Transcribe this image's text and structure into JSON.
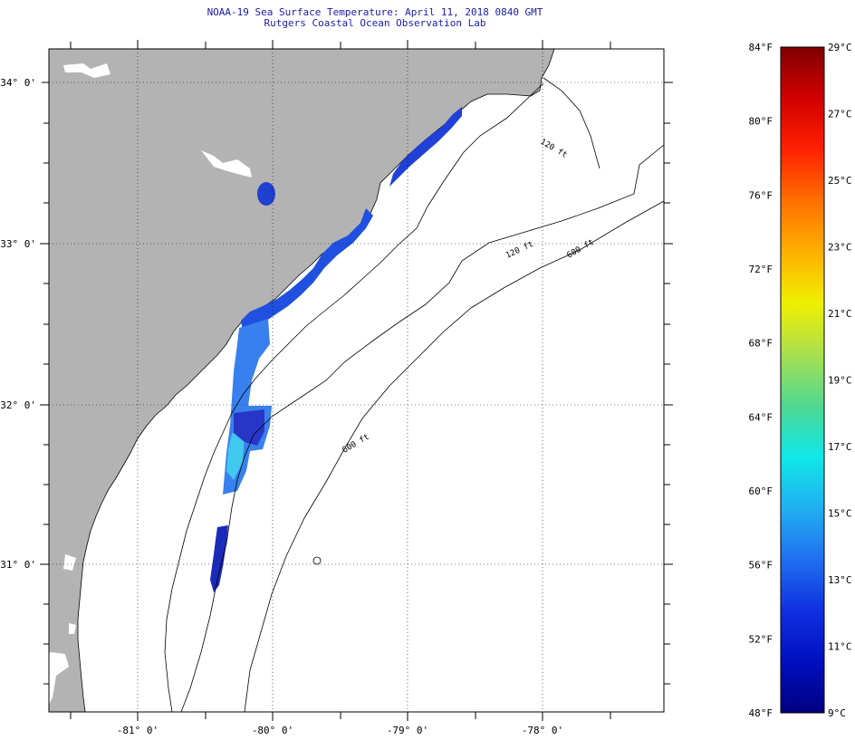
{
  "title": {
    "line1": "NOAA-19 Sea Surface Temperature:  April 11, 2018 0840 GMT",
    "line2": "Rutgers Coastal Ocean Observation Lab"
  },
  "map": {
    "lat_labels": [
      "34° 0'",
      "33° 0'",
      "32° 0'",
      "31° 0'"
    ],
    "lon_labels": [
      "-81° 0'",
      "-80° 0'",
      "-79° 0'",
      "-78° 0'"
    ],
    "isobath_labels": [
      "120 ft",
      "600 ft",
      "600 ft",
      "120 ft"
    ]
  },
  "colorbar": {
    "fahrenheit_labels": [
      "84°F",
      "80°F",
      "76°F",
      "72°F",
      "68°F",
      "64°F",
      "60°F",
      "56°F",
      "52°F",
      "48°F"
    ],
    "celsius_labels": [
      "29°C",
      "27°C",
      "25°C",
      "23°C",
      "21°C",
      "19°C",
      "17°C",
      "15°C",
      "13°C",
      "11°C",
      "9°C"
    ],
    "gradient_colors": [
      "#800000",
      "#d00000",
      "#ff2000",
      "#ff7000",
      "#ffb000",
      "#f0f000",
      "#a8e050",
      "#50d890",
      "#10e8e8",
      "#20b0f0",
      "#2070f0",
      "#1030e0",
      "#0010c0",
      "#000080"
    ]
  },
  "colors": {
    "land": "#b3b3b3",
    "ocean": "#ffffff",
    "sst_cold": "#2030d0",
    "sst_mid": "#4090f0",
    "sst_warm": "#40d0f0",
    "title_text": "#1a1aa8"
  }
}
